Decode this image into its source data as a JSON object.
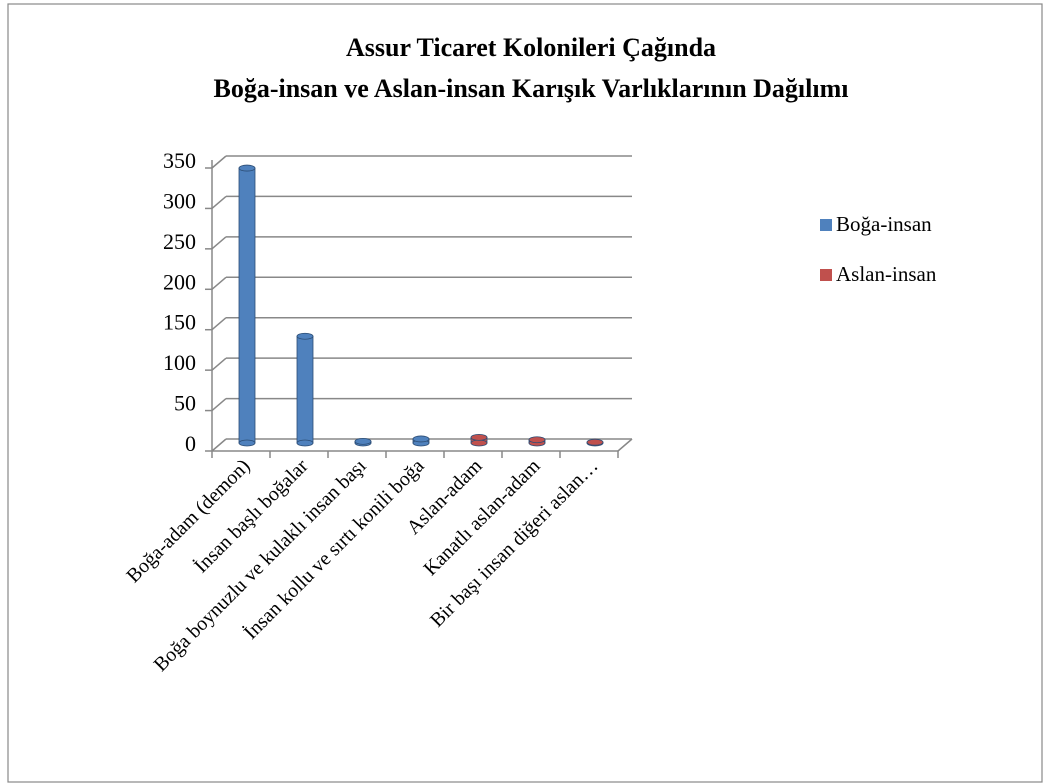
{
  "chart_data": {
    "type": "bar",
    "title": "Assur Ticaret Kolonileri Çağında",
    "subtitle": "Boğa-insan ve Aslan-insan Karışık Varlıklarının Dağılımı",
    "categories": [
      "Boğa-adam (demon)",
      "İnsan başlı boğalar",
      "Boğa boynuzlu ve kulaklı insan başı",
      "İnsan kollu ve sırtı konili boğa",
      "Aslan-adam",
      "Kanatlı aslan-adam",
      "Bir başı insan diğeri aslan…"
    ],
    "series": [
      {
        "name": "Boğa-insan",
        "color": "#4f81bd",
        "values": [
          340,
          132,
          2,
          5,
          null,
          null,
          null
        ]
      },
      {
        "name": "Aslan-insan",
        "color": "#c0504d",
        "values": [
          null,
          null,
          null,
          null,
          7,
          4,
          1
        ]
      }
    ],
    "ylim": [
      0,
      350
    ],
    "yticks": [
      0,
      50,
      100,
      150,
      200,
      250,
      300,
      350
    ],
    "grid": true,
    "legend": "right"
  }
}
